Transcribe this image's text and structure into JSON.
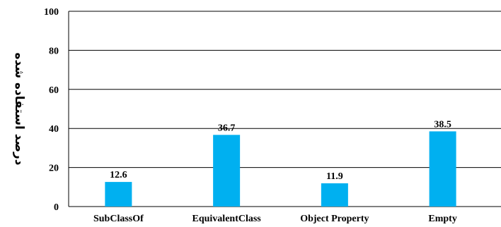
{
  "chart_data": {
    "type": "bar",
    "categories": [
      "SubClassOf",
      "EquivalentClass",
      "Object Property",
      "Empty"
    ],
    "values": [
      12.6,
      36.7,
      11.9,
      38.5
    ],
    "value_labels": [
      "12.6",
      "36.7",
      "11.9",
      "38.5"
    ],
    "title": "",
    "xlabel": "",
    "ylabel": "درصد استفاده شده",
    "ylim": [
      0,
      100
    ],
    "yticks": [
      0,
      20,
      40,
      60,
      80,
      100
    ],
    "ytick_labels": [
      "0",
      "20",
      "40",
      "60",
      "80",
      "100"
    ],
    "grid": true,
    "legend": "none",
    "bar_color": "#00B0F0",
    "grid_color": "#000000"
  }
}
